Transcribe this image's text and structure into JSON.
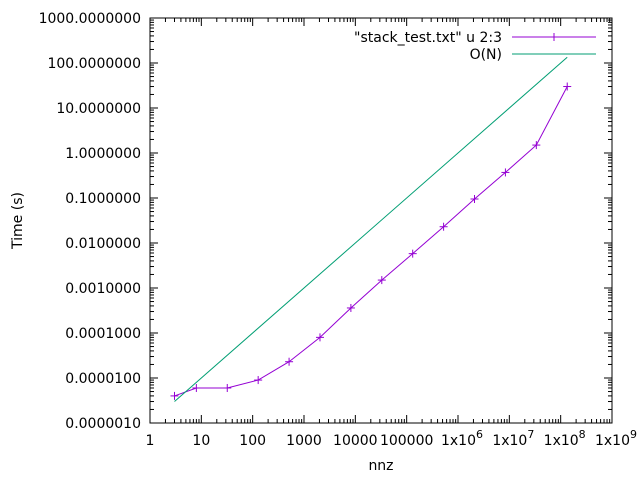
{
  "chart_data": {
    "type": "line",
    "title": "",
    "xlabel": "nnz",
    "ylabel": "Time (s)",
    "x_scale": "log",
    "y_scale": "log",
    "xlim": [
      1,
      1000000000
    ],
    "ylim": [
      1e-06,
      1000
    ],
    "grid": false,
    "legend_position": "top-right",
    "x_ticks": [
      {
        "value": 1,
        "label": "1"
      },
      {
        "value": 10,
        "label": "10"
      },
      {
        "value": 100,
        "label": "100"
      },
      {
        "value": 1000,
        "label": "1000"
      },
      {
        "value": 10000,
        "label": "10000"
      },
      {
        "value": 100000,
        "label": "100000"
      },
      {
        "value": 1000000,
        "label": "1x10",
        "exp": "6"
      },
      {
        "value": 10000000,
        "label": "1x10",
        "exp": "7"
      },
      {
        "value": 100000000,
        "label": "1x10",
        "exp": "8"
      },
      {
        "value": 1000000000,
        "label": "1x10",
        "exp": "9"
      }
    ],
    "y_ticks": [
      {
        "value": 1e-06,
        "label": "0.0000010"
      },
      {
        "value": 1e-05,
        "label": "0.0000100"
      },
      {
        "value": 0.0001,
        "label": "0.0001000"
      },
      {
        "value": 0.001,
        "label": "0.0010000"
      },
      {
        "value": 0.01,
        "label": "0.0100000"
      },
      {
        "value": 0.1,
        "label": "0.1000000"
      },
      {
        "value": 1,
        "label": "1.0000000"
      },
      {
        "value": 10,
        "label": "10.0000000"
      },
      {
        "value": 100,
        "label": "100.0000000"
      },
      {
        "value": 1000,
        "label": "1000.0000000"
      }
    ],
    "series": [
      {
        "name": "\"stack_test.txt\" u 2:3",
        "color": "#9400d3",
        "style": "linespoints",
        "marker": "plus",
        "x": [
          3,
          8,
          32,
          128,
          512,
          2048,
          8192,
          32768,
          131072,
          524288,
          2097152,
          8388608,
          33554432,
          134217728
        ],
        "y": [
          4e-06,
          6e-06,
          6e-06,
          9e-06,
          2.3e-05,
          8e-05,
          0.00036,
          0.0015,
          0.0058,
          0.023,
          0.095,
          0.37,
          1.5,
          30
        ]
      },
      {
        "name": "O(N)",
        "color": "#009e73",
        "style": "lines",
        "x": [
          3,
          134217728
        ],
        "y": [
          3e-06,
          134
        ]
      }
    ]
  }
}
